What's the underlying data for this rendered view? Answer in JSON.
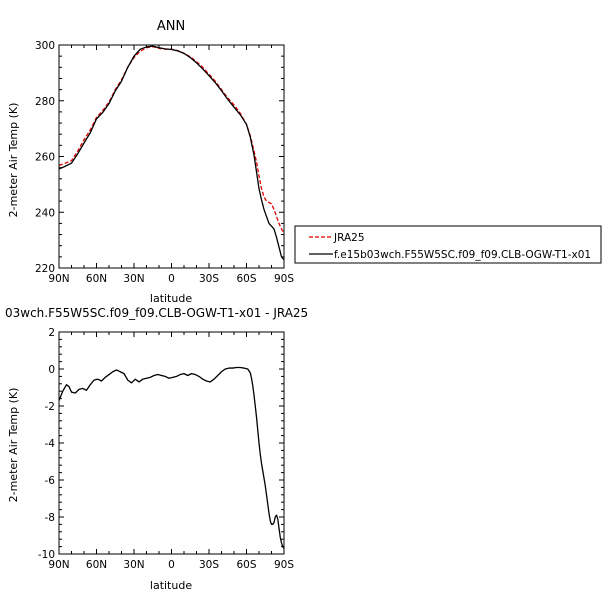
{
  "chart_data": [
    {
      "type": "line",
      "title": "ANN",
      "xlabel": "latitude",
      "ylabel": "2-meter Air Temp (K)",
      "xlim": [
        90,
        -90
      ],
      "ylim": [
        220,
        300
      ],
      "xtick_values": [
        90,
        60,
        30,
        0,
        -30,
        -60,
        -90
      ],
      "xtick_labels": [
        "90N",
        "60N",
        "30N",
        "0",
        "30S",
        "60S",
        "90S"
      ],
      "ytick_values": [
        220,
        240,
        260,
        280,
        300
      ],
      "ytick_labels": [
        "220",
        "240",
        "260",
        "280",
        "300"
      ],
      "legend_position": "right",
      "series": [
        {
          "name": "JRA25",
          "color": "#e00000",
          "dash": true,
          "x": [
            90,
            85,
            80,
            75,
            70,
            65,
            60,
            55,
            50,
            45,
            40,
            35,
            30,
            25,
            20,
            15,
            10,
            5,
            0,
            -5,
            -10,
            -15,
            -20,
            -25,
            -30,
            -35,
            -40,
            -45,
            -50,
            -55,
            -60,
            -63,
            -66,
            -68,
            -70,
            -72,
            -74,
            -76,
            -78,
            -80,
            -82,
            -84,
            -86,
            -88,
            -90
          ],
          "y": [
            256.8,
            257.6,
            258.5,
            262,
            266,
            269.5,
            274,
            276.5,
            279.5,
            284,
            287.5,
            292,
            295.5,
            297.8,
            299,
            299.4,
            298.8,
            298.5,
            298.5,
            298,
            297,
            295.8,
            294,
            292,
            289.5,
            287,
            284,
            281,
            278.5,
            275.5,
            271.5,
            267.5,
            262,
            258,
            253,
            248.5,
            245.5,
            244,
            243.5,
            243,
            241,
            238.5,
            236,
            234,
            232.5
          ]
        },
        {
          "name": "f.e15b03wch.F55W5SC.f09_f09.CLB-OGW-T1-x01",
          "color": "#000000",
          "dash": false,
          "x": [
            90,
            85,
            80,
            75,
            70,
            65,
            60,
            55,
            50,
            45,
            40,
            35,
            30,
            25,
            20,
            15,
            10,
            5,
            0,
            -5,
            -10,
            -15,
            -20,
            -25,
            -30,
            -35,
            -40,
            -45,
            -50,
            -55,
            -60,
            -63,
            -66,
            -68,
            -70,
            -72,
            -74,
            -76,
            -78,
            -80,
            -82,
            -84,
            -86,
            -88,
            -90
          ],
          "y": [
            255.5,
            256.5,
            257.6,
            261,
            264.8,
            268.5,
            273.5,
            275.8,
            279,
            283.5,
            287,
            292,
            296,
            298.5,
            299.3,
            299.6,
            299,
            298.6,
            298.4,
            297.9,
            297,
            295.5,
            293.6,
            291.4,
            289,
            286.5,
            283.6,
            280.5,
            277.7,
            275,
            271.5,
            267,
            260.5,
            254.5,
            248.5,
            244.5,
            241,
            238.5,
            236,
            235,
            234,
            231,
            227.5,
            224,
            223
          ]
        }
      ]
    },
    {
      "type": "line",
      "title": "03wch.F55W5SC.f09_f09.CLB-OGW-T1-x01  -  JRA25",
      "xlabel": "latitude",
      "ylabel": "2-meter Air Temp (K)",
      "xlim": [
        90,
        -90
      ],
      "ylim": [
        -10,
        2
      ],
      "xtick_values": [
        90,
        60,
        30,
        0,
        -30,
        -60,
        -90
      ],
      "xtick_labels": [
        "90N",
        "60N",
        "30N",
        "0",
        "30S",
        "60S",
        "90S"
      ],
      "ytick_values": [
        -10,
        -8,
        -6,
        -4,
        -2,
        0,
        2
      ],
      "ytick_labels": [
        "-10",
        "-8",
        "-6",
        "-4",
        "-2",
        "0",
        "2"
      ],
      "series": [
        {
          "color": "#000000",
          "dash": false,
          "x": [
            90,
            87,
            84,
            82,
            80,
            77,
            74,
            71,
            68,
            65,
            62,
            59,
            56,
            53,
            50,
            47,
            44,
            41,
            38,
            35,
            32,
            29,
            26,
            23,
            20,
            17,
            14,
            11,
            8,
            5,
            2,
            -1,
            -4,
            -7,
            -10,
            -13,
            -16,
            -19,
            -22,
            -25,
            -28,
            -31,
            -34,
            -37,
            -40,
            -43,
            -46,
            -49,
            -52,
            -55,
            -58,
            -61,
            -63,
            -64,
            -65,
            -66,
            -67,
            -68,
            -69,
            -70,
            -71,
            -72,
            -73,
            -74,
            -75,
            -76,
            -77,
            -78,
            -79,
            -80,
            -81,
            -82,
            -83,
            -84,
            -85,
            -86,
            -87,
            -88,
            -89,
            -90
          ],
          "y": [
            -1.7,
            -1.2,
            -0.85,
            -0.95,
            -1.25,
            -1.3,
            -1.1,
            -1.05,
            -1.15,
            -0.85,
            -0.6,
            -0.55,
            -0.65,
            -0.45,
            -0.3,
            -0.15,
            -0.05,
            -0.15,
            -0.25,
            -0.6,
            -0.75,
            -0.55,
            -0.7,
            -0.55,
            -0.5,
            -0.45,
            -0.35,
            -0.3,
            -0.35,
            -0.4,
            -0.5,
            -0.45,
            -0.4,
            -0.3,
            -0.25,
            -0.35,
            -0.25,
            -0.3,
            -0.4,
            -0.55,
            -0.65,
            -0.7,
            -0.55,
            -0.35,
            -0.15,
            0.0,
            0.05,
            0.05,
            0.08,
            0.08,
            0.05,
            0.0,
            -0.2,
            -0.5,
            -0.9,
            -1.4,
            -2.0,
            -2.6,
            -3.3,
            -4.0,
            -4.6,
            -5.1,
            -5.5,
            -5.9,
            -6.3,
            -6.8,
            -7.3,
            -7.8,
            -8.2,
            -8.4,
            -8.4,
            -8.3,
            -8.0,
            -7.9,
            -8.1,
            -8.6,
            -9.1,
            -9.4,
            -9.6,
            -9.7
          ]
        }
      ]
    }
  ]
}
